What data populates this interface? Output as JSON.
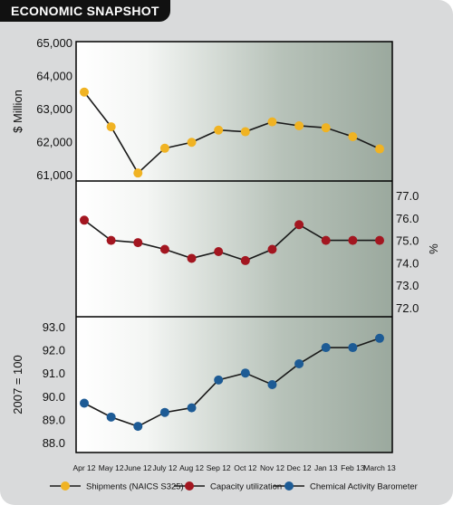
{
  "title": "ECONOMIC SNAPSHOT",
  "chart_data": {
    "type": "line",
    "categories": [
      "Apr 12",
      "May 12",
      "June 12",
      "July 12",
      "Aug 12",
      "Sep 12",
      "Oct 12",
      "Nov 12",
      "Dec 12",
      "Jan 13",
      "Feb 13",
      "March 13"
    ],
    "panels": [
      {
        "ylabel": "$ Million",
        "ylim": [
          61000,
          65000
        ],
        "ticks": [
          "65,000",
          "64,000",
          "63,000",
          "62,000",
          "61,000"
        ],
        "tick_values": [
          65000,
          64000,
          63000,
          62000,
          61000
        ],
        "axis_side": "left",
        "series": {
          "name": "Shipments (NAICS S325)",
          "color": "#f0b323",
          "values": [
            63500,
            62450,
            61050,
            61800,
            61980,
            62350,
            62300,
            62600,
            62480,
            62420,
            62150,
            61780
          ]
        }
      },
      {
        "ylabel": "%",
        "ylim": [
          72,
          77
        ],
        "ticks": [
          "77.0",
          "76.0",
          "75.0",
          "74.0",
          "73.0",
          "72.0"
        ],
        "tick_values": [
          77,
          76,
          75,
          74,
          73,
          72
        ],
        "axis_side": "right",
        "series": {
          "name": "Capacity utilization",
          "color": "#a31620",
          "values": [
            75.9,
            75.0,
            74.9,
            74.6,
            74.2,
            74.5,
            74.1,
            74.6,
            75.7,
            75.0,
            75.0,
            75.0
          ]
        }
      },
      {
        "ylabel": "2007 = 100",
        "ylim": [
          88,
          93
        ],
        "ticks": [
          "93.0",
          "92.0",
          "91.0",
          "90.0",
          "89.0",
          "88.0"
        ],
        "tick_values": [
          93,
          92,
          91,
          90,
          89,
          88
        ],
        "axis_side": "left",
        "series": {
          "name": "Chemical Activity Barometer",
          "color": "#1d5b95",
          "values": [
            89.7,
            89.1,
            88.7,
            89.3,
            89.5,
            90.7,
            91.0,
            90.5,
            91.4,
            92.1,
            92.1,
            92.5
          ]
        }
      }
    ],
    "legend": [
      {
        "label": "Shipments (NAICS S325)",
        "color": "#f0b323"
      },
      {
        "label": "Capacity utilization",
        "color": "#a31620"
      },
      {
        "label": "Chemical Activity Barometer",
        "color": "#1d5b95"
      }
    ],
    "legend_position": "bottom"
  }
}
